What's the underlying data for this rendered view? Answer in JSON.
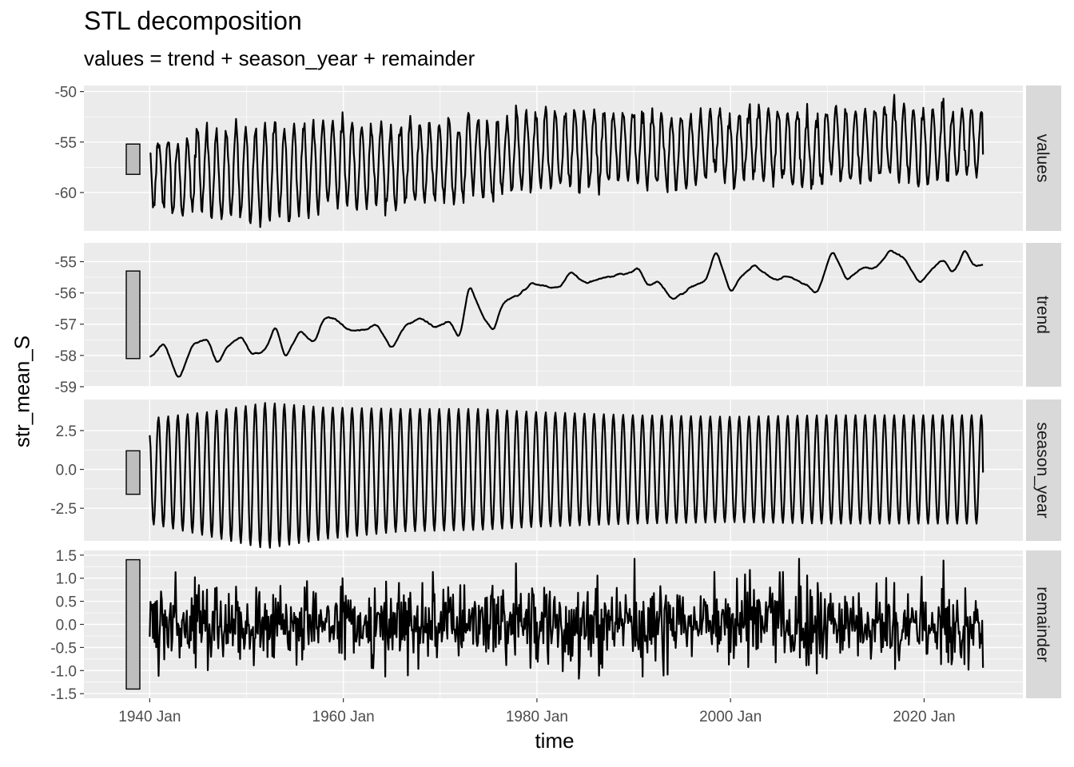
{
  "chart_data": {
    "type": "line",
    "title": "STL decomposition",
    "subtitle": "values = trend + season_year + remainder",
    "xlabel": "time",
    "ylabel": "str_mean_S",
    "x_range": [
      "1940 Jan",
      "2026 Feb"
    ],
    "x_ticks": [
      "1940 Jan",
      "1960 Jan",
      "1980 Jan",
      "2000 Jan",
      "2020 Jan"
    ],
    "x_tick_years": [
      1940,
      1960,
      1980,
      2000,
      2020
    ],
    "x_minor_years": [
      1950,
      1970,
      1990,
      2010
    ],
    "x_limits": [
      1933.2,
      2030.2
    ],
    "grid": true,
    "panels": [
      {
        "name": "values",
        "ylim": [
          -63.8,
          -49.4
        ],
        "y_ticks": [
          -50,
          -55,
          -60
        ],
        "y_tick_labels": [
          "-50",
          "-55",
          "-60"
        ],
        "scale_bar": [
          -58.2,
          -55.2
        ],
        "series": {
          "type": "composite",
          "components": [
            "trend",
            "season_year",
            "remainder"
          ]
        }
      },
      {
        "name": "trend",
        "ylim": [
          -59.0,
          -54.4
        ],
        "y_ticks": [
          -55,
          -56,
          -57,
          -58,
          -59
        ],
        "y_tick_labels": [
          "-55",
          "-56",
          "-57",
          "-58",
          "-59"
        ],
        "scale_bar": [
          -58.1,
          -55.3
        ],
        "series": {
          "type": "piecewise",
          "x": [
            1940.0,
            1941.5,
            1943.0,
            1944.5,
            1946.0,
            1947.0,
            1948.0,
            1949.5,
            1950.5,
            1952.0,
            1953.0,
            1954.0,
            1955.5,
            1957.0,
            1958.0,
            1959.0,
            1960.5,
            1962.0,
            1963.5,
            1965.0,
            1966.5,
            1968.0,
            1969.5,
            1971.0,
            1972.0,
            1973.0,
            1974.5,
            1975.5,
            1976.5,
            1978.0,
            1979.5,
            1981.0,
            1982.5,
            1983.5,
            1985.0,
            1987.0,
            1989.0,
            1990.5,
            1991.5,
            1992.5,
            1994.0,
            1996.0,
            1997.5,
            1998.5,
            2000.0,
            2001.0,
            2002.5,
            2004.5,
            2006.0,
            2007.5,
            2009.0,
            2010.5,
            2012.0,
            2013.5,
            2015.0,
            2016.5,
            2018.0,
            2019.5,
            2021.0,
            2022.0,
            2023.0,
            2024.2,
            2025.0,
            2026.0
          ],
          "y": [
            -58.1,
            -57.6,
            -58.8,
            -57.6,
            -57.5,
            -58.3,
            -57.7,
            -57.4,
            -58.0,
            -57.8,
            -57.0,
            -58.1,
            -57.2,
            -57.6,
            -56.8,
            -56.8,
            -57.2,
            -57.2,
            -57.0,
            -57.8,
            -57.0,
            -56.8,
            -57.1,
            -56.9,
            -57.5,
            -55.7,
            -56.8,
            -57.2,
            -56.3,
            -56.1,
            -55.7,
            -55.8,
            -55.8,
            -55.3,
            -55.7,
            -55.5,
            -55.4,
            -55.2,
            -55.8,
            -55.6,
            -56.2,
            -55.8,
            -55.6,
            -54.6,
            -56.0,
            -55.5,
            -55.1,
            -55.6,
            -55.5,
            -55.7,
            -56.0,
            -54.6,
            -55.6,
            -55.2,
            -55.2,
            -54.6,
            -54.9,
            -55.7,
            -55.2,
            -54.9,
            -55.4,
            -54.6,
            -55.1,
            -55.1
          ],
          "smooth_noise": 0.08
        }
      },
      {
        "name": "season_year",
        "ylim": [
          -4.6,
          4.5
        ],
        "y_ticks": [
          2.5,
          0.0,
          -2.5
        ],
        "y_tick_labels": [
          "2.5",
          "0.0",
          "-2.5"
        ],
        "scale_bar": [
          -1.6,
          1.2
        ],
        "series": {
          "type": "seasonal",
          "period_years": 1.0,
          "amplitude_knots_x": [
            1940,
            1946,
            1952,
            1958,
            1966,
            1974,
            1980,
            1990,
            2000,
            2010,
            2026
          ],
          "amplitude_knots_y": [
            3.3,
            3.7,
            4.3,
            4.0,
            3.9,
            3.9,
            3.7,
            3.5,
            3.4,
            3.5,
            3.5
          ],
          "low_extra_knots_y": [
            0.2,
            0.6,
            0.8,
            0.5,
            0.1,
            0.0,
            0.0,
            0.0,
            0.0,
            0.0,
            0.0
          ],
          "start_value": 2.2,
          "end_value": -0.2
        }
      },
      {
        "name": "remainder",
        "ylim": [
          -1.6,
          1.6
        ],
        "y_ticks": [
          1.5,
          1.0,
          0.5,
          0.0,
          -0.5,
          -1.0,
          -1.5
        ],
        "y_tick_labels": [
          "1.5",
          "1.0",
          "0.5",
          "0.0",
          "-0.5",
          "-1.0",
          "-1.5"
        ],
        "scale_bar": [
          -1.4,
          1.4
        ],
        "series": {
          "type": "noise",
          "sd": 0.42,
          "clip": [
            -1.42,
            1.42
          ],
          "seed": 20
        }
      }
    ]
  },
  "colors": {
    "panel_bg": "#ebebeb",
    "grid_major": "#ffffff",
    "strip_bg": "#d9d9d9",
    "line": "#000000",
    "scale_bar_fill": "#bebebe",
    "tick_text": "#4d4d4d",
    "strip_text": "#1a1a1a"
  }
}
